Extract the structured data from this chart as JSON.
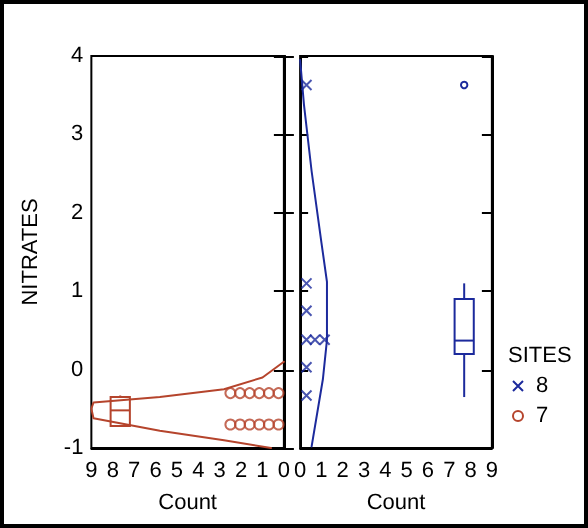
{
  "chart_data": [
    {
      "type": "scatter",
      "xlabel": "Count",
      "ylabel": "NITRATES",
      "xlim": [
        9,
        0
      ],
      "xticks": [
        9,
        8,
        7,
        6,
        5,
        4,
        3,
        2,
        1,
        0
      ],
      "ylim": [
        -1,
        4
      ],
      "yticks": [
        -1,
        0,
        1,
        2,
        3,
        4
      ],
      "series": [
        {
          "name": "7",
          "color": "#b5442c",
          "marker": "circle",
          "x": [
            0.25,
            0.7,
            1.15,
            1.6,
            2.05,
            2.5,
            0.25,
            0.7,
            1.15,
            1.6,
            2.05,
            2.5
          ],
          "values": [
            -0.3,
            -0.3,
            -0.3,
            -0.3,
            -0.3,
            -0.3,
            -0.7,
            -0.7,
            -0.7,
            -0.7,
            -0.7,
            -0.7
          ]
        },
        {
          "type": "line",
          "color": "#b5442c",
          "marker": "none",
          "line_style": "solid",
          "x": [
            0,
            1,
            2.8,
            5.8,
            8.9,
            9,
            8.9,
            5.8,
            2.8,
            0.6
          ],
          "values": [
            0.1,
            -0.1,
            -0.25,
            -0.35,
            -0.42,
            -0.5,
            -0.62,
            -0.78,
            -0.9,
            -1
          ]
        },
        {
          "type": "box",
          "color": "#b5442c",
          "x": [
            7.65
          ],
          "boxes": [
            {
              "low": -0.72,
              "q1": -0.72,
              "median": -0.52,
              "q3": -0.35,
              "high": -0.33
            }
          ]
        }
      ]
    },
    {
      "type": "scatter",
      "xlabel": "Count",
      "xlim": [
        0,
        9
      ],
      "xticks": [
        0,
        1,
        2,
        3,
        4,
        5,
        6,
        7,
        8,
        9
      ],
      "ylim": [
        -1,
        4
      ],
      "yticks": [
        -1,
        0,
        1,
        2,
        3,
        4
      ],
      "tick_labels": "x",
      "legend": "right",
      "legend_title": "SITES",
      "series": [
        {
          "name": "8",
          "color": "#1c2a9c",
          "marker": "cross",
          "x": [
            0.3,
            0.3,
            0.3,
            0.3,
            0.7,
            1.15,
            0.3,
            0.3
          ],
          "values": [
            3.63,
            1.1,
            0.75,
            0.38,
            0.38,
            0.38,
            0.03,
            -0.33
          ]
        },
        {
          "type": "line",
          "color": "#1c2a9c",
          "marker": "none",
          "line_style": "solid",
          "x": [
            0,
            0.18,
            0.54,
            1,
            1.26,
            1.26,
            1.07,
            0.54
          ],
          "values": [
            3.95,
            3.38,
            2.53,
            1.62,
            1.12,
            0.38,
            -0.12,
            -0.98
          ]
        },
        {
          "type": "box",
          "color": "#1c2a9c",
          "x": [
            7.7
          ],
          "boxes": [
            {
              "low": -0.35,
              "q1": 0.2,
              "median": 0.37,
              "q3": 0.9,
              "high": 1.1,
              "outliers": [
                3.63
              ]
            }
          ]
        }
      ]
    }
  ]
}
